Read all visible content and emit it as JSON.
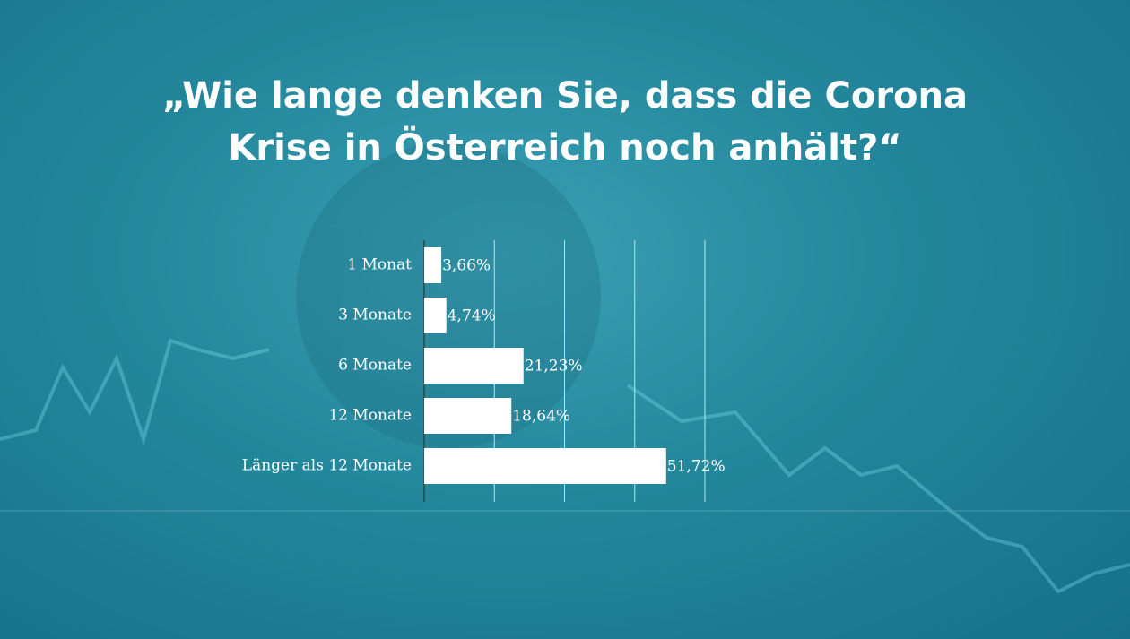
{
  "chart_data": {
    "type": "bar",
    "orientation": "horizontal",
    "title": "„Wie lange denken Sie, dass die Corona Krise in Österreich noch anhält?“",
    "categories": [
      "1 Monat",
      "3 Monate",
      "6 Monate",
      "12 Monate",
      "Länger als 12 Monate"
    ],
    "values": [
      3.66,
      4.74,
      21.23,
      18.64,
      51.72
    ],
    "value_labels": [
      "3,66%",
      "4,74%",
      "21,23%",
      "18,64%",
      "51,72%"
    ],
    "color": "#ffffff",
    "xlim": [
      0,
      60
    ],
    "xticks": [
      0,
      15,
      30,
      45,
      60
    ],
    "grid": true
  }
}
